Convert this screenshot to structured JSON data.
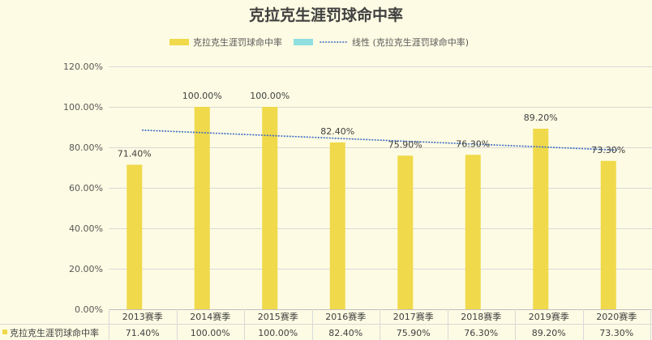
{
  "chart_data": {
    "type": "bar",
    "title": "克拉克生涯罚球命中率",
    "categories": [
      "2013赛季",
      "2014赛季",
      "2015赛季",
      "2016赛季",
      "2017赛季",
      "2018赛季",
      "2019赛季",
      "2020赛季"
    ],
    "series": [
      {
        "name": "克拉克生涯罚球命中率",
        "values": [
          71.4,
          100,
          100,
          82.4,
          75.9,
          76.3,
          89.2,
          73.3
        ],
        "data_labels": [
          "71.40%",
          "100.00%",
          "100.00%",
          "82.40%",
          "75.90%",
          "76.30%",
          "89.20%",
          "73.30%"
        ],
        "color": "#f0d94a"
      },
      {
        "color": "#8fdfe0"
      }
    ],
    "trendline": {
      "type": "linear",
      "series_index": 0,
      "name": "线性 (克拉克生涯罚球命中率)",
      "color": "#4472c4"
    },
    "ylim": [
      0,
      120
    ],
    "yticks": [
      0,
      20,
      40,
      60,
      80,
      100,
      120
    ],
    "ytick_labels": [
      "0.00%",
      "20.00%",
      "40.00%",
      "60.00%",
      "80.00%",
      "100.00%",
      "120.00%"
    ],
    "grid": true,
    "legend": "top",
    "data_table": true
  },
  "colors": {
    "background": "#fdfbe3",
    "gridline": "#d9d9d9",
    "text": "#595959"
  }
}
